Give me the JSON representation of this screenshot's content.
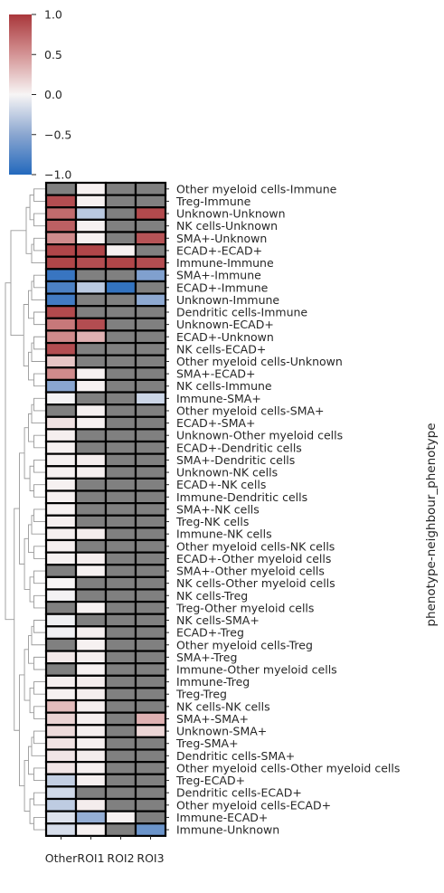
{
  "chart_data": {
    "type": "heatmap",
    "title": "",
    "xlabel": "",
    "ylabel": "phenotype-neighbour_phenotype",
    "columns": [
      "Other",
      "ROI1",
      "ROI2",
      "ROI3"
    ],
    "rows": [
      "Other myeloid cells-Immune",
      "Treg-Immune",
      "Unknown-Unknown",
      "NK cells-Unknown",
      "SMA+-Unknown",
      "ECAD+-ECAD+",
      "Immune-Immune",
      "SMA+-Immune",
      "ECAD+-Immune",
      "Unknown-Immune",
      "Dendritic cells-Immune",
      "Unknown-ECAD+",
      "ECAD+-Unknown",
      "NK cells-ECAD+",
      "Other myeloid cells-Unknown",
      "SMA+-ECAD+",
      "NK cells-Immune",
      "Immune-SMA+",
      "Other myeloid cells-SMA+",
      "ECAD+-SMA+",
      "Unknown-Other myeloid cells",
      "ECAD+-Dendritic cells",
      "SMA+-Dendritic cells",
      "Unknown-NK cells",
      "ECAD+-NK cells",
      "Immune-Dendritic cells",
      "SMA+-NK cells",
      "Treg-NK cells",
      "Immune-NK cells",
      "Other myeloid cells-NK cells",
      "ECAD+-Other myeloid cells",
      "SMA+-Other myeloid cells",
      "NK cells-Other myeloid cells",
      "NK cells-Treg",
      "Treg-Other myeloid cells",
      "NK cells-SMA+",
      "ECAD+-Treg",
      "Other myeloid cells-Treg",
      "SMA+-Treg",
      "Immune-Other myeloid cells",
      "Immune-Treg",
      "Treg-Treg",
      "NK cells-NK cells",
      "SMA+-SMA+",
      "Unknown-SMA+",
      "Treg-SMA+",
      "Dendritic cells-SMA+",
      "Other myeloid cells-Other myeloid cells",
      "Treg-ECAD+",
      "Dendritic cells-ECAD+",
      "Other myeloid cells-ECAD+",
      "Immune-ECAD+",
      "Immune-Unknown"
    ],
    "values": [
      [
        null,
        0.02,
        null,
        null
      ],
      [
        0.88,
        0.02,
        null,
        null
      ],
      [
        0.72,
        -0.28,
        null,
        0.9
      ],
      [
        0.78,
        0.02,
        null,
        null
      ],
      [
        0.55,
        0.02,
        null,
        0.85
      ],
      [
        0.92,
        0.92,
        0.02,
        null
      ],
      [
        0.92,
        0.88,
        0.92,
        0.88
      ],
      [
        -0.9,
        null,
        null,
        -0.55
      ],
      [
        -0.8,
        -0.28,
        -0.92,
        null
      ],
      [
        -0.85,
        null,
        null,
        -0.48
      ],
      [
        0.9,
        null,
        null,
        null
      ],
      [
        0.65,
        0.88,
        null,
        null
      ],
      [
        0.55,
        0.35,
        null,
        null
      ],
      [
        0.88,
        null,
        null,
        null
      ],
      [
        0.25,
        null,
        null,
        null
      ],
      [
        0.55,
        0.02,
        null,
        null
      ],
      [
        -0.5,
        0.02,
        null,
        null
      ],
      [
        -0.02,
        null,
        null,
        -0.2
      ],
      [
        null,
        0.02,
        null,
        null
      ],
      [
        0.1,
        0.02,
        null,
        null
      ],
      [
        0.03,
        null,
        null,
        null
      ],
      [
        0.02,
        null,
        null,
        null
      ],
      [
        0.02,
        0.04,
        null,
        null
      ],
      [
        0.02,
        0.03,
        null,
        null
      ],
      [
        0.02,
        null,
        null,
        null
      ],
      [
        0.02,
        null,
        null,
        null
      ],
      [
        0.02,
        null,
        null,
        null
      ],
      [
        0.03,
        null,
        null,
        null
      ],
      [
        0.03,
        0.04,
        null,
        null
      ],
      [
        0.03,
        null,
        null,
        null
      ],
      [
        0.02,
        0.04,
        null,
        null
      ],
      [
        null,
        0.02,
        null,
        null
      ],
      [
        0.0,
        null,
        null,
        null
      ],
      [
        -0.02,
        null,
        null,
        null
      ],
      [
        null,
        0.02,
        null,
        null
      ],
      [
        -0.04,
        null,
        null,
        null
      ],
      [
        -0.03,
        0.03,
        null,
        null
      ],
      [
        null,
        0.02,
        null,
        null
      ],
      [
        0.06,
        0.03,
        null,
        null
      ],
      [
        null,
        0.02,
        null,
        null
      ],
      [
        0.03,
        0.04,
        null,
        null
      ],
      [
        0.02,
        0.04,
        null,
        null
      ],
      [
        0.3,
        0.03,
        null,
        null
      ],
      [
        0.18,
        0.03,
        null,
        0.35
      ],
      [
        0.14,
        0.03,
        null,
        0.16
      ],
      [
        0.1,
        0.03,
        null,
        null
      ],
      [
        0.08,
        0.04,
        null,
        null
      ],
      [
        0.08,
        0.03,
        null,
        null
      ],
      [
        -0.24,
        0.03,
        null,
        null
      ],
      [
        -0.18,
        null,
        null,
        null
      ],
      [
        -0.26,
        0.04,
        null,
        null
      ],
      [
        -0.12,
        -0.45,
        0.02,
        null
      ],
      [
        -0.15,
        0.02,
        null,
        -0.65
      ]
    ],
    "missing_color": "#808080",
    "vmin": -1.0,
    "vmax": 1.0,
    "colormap": "vlag",
    "colorbar_ticks": [
      "1.0",
      "0.5",
      "0.0",
      "−0.5",
      "−1.0"
    ],
    "colorbar_tick_values": [
      1.0,
      0.5,
      0.0,
      -0.5,
      -1.0
    ],
    "row_dendrogram": true,
    "legend": "colorbar top-left"
  }
}
